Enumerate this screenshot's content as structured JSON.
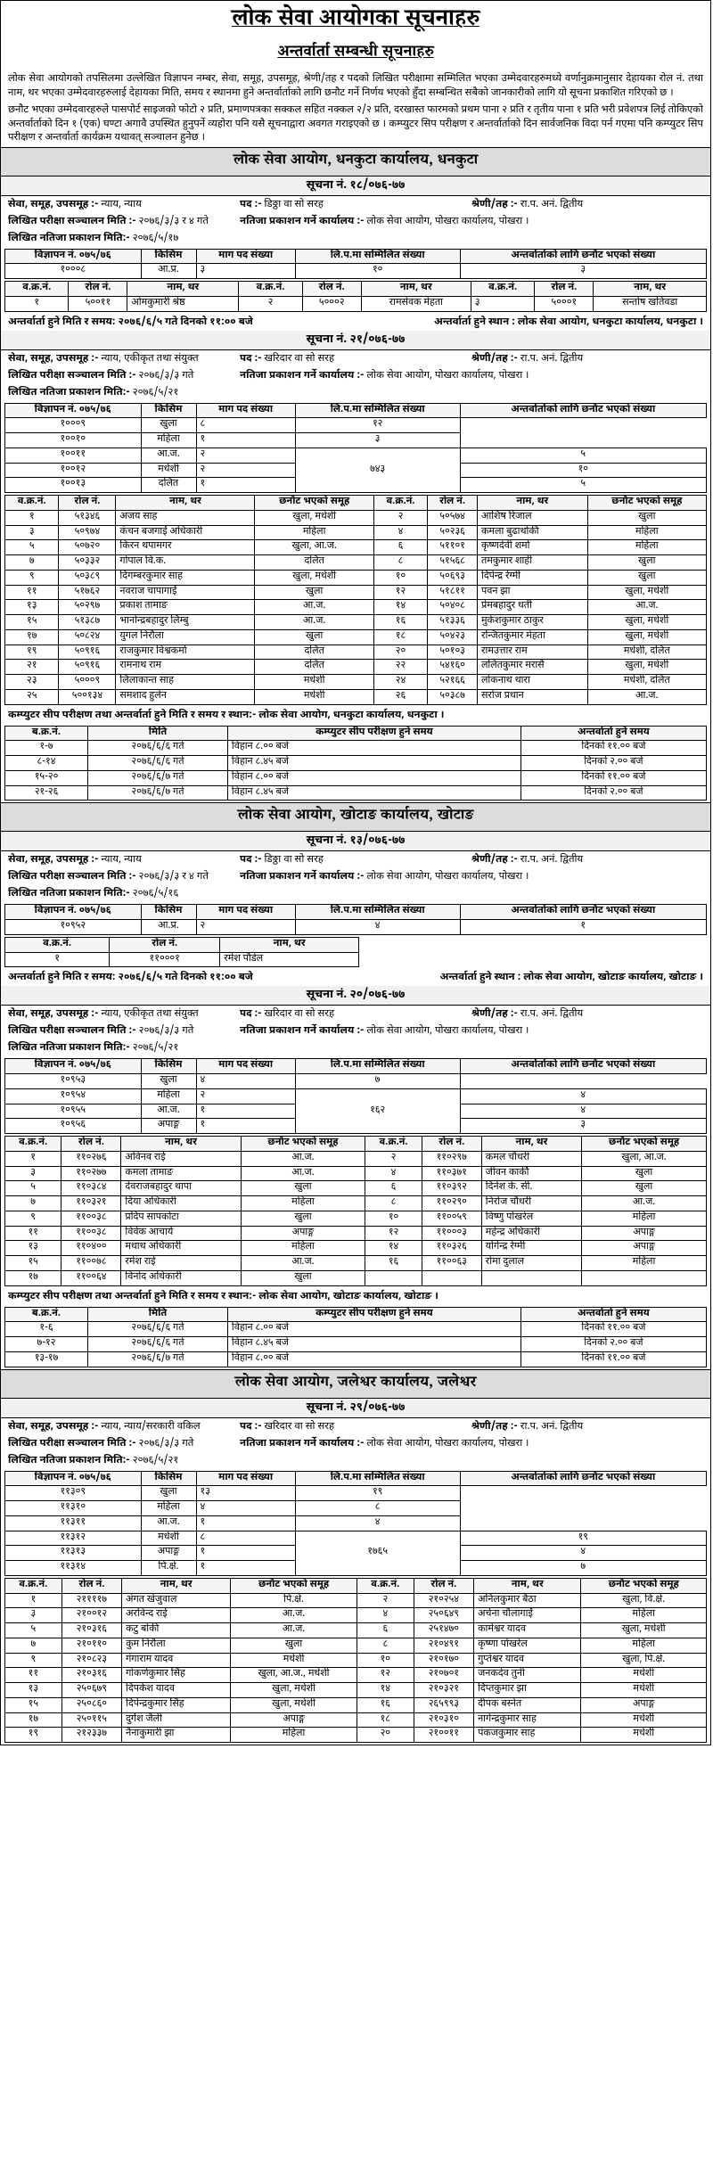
{
  "header": {
    "main": "लोक सेवा आयोगका सूचनाहरु",
    "sub": "अन्तर्वार्ता सम्बन्धी सूचनाहरु"
  },
  "intro": {
    "p1": "लोक सेवा आयोगको तपसिलमा उल्लेखित विज्ञापन नम्बर, सेवा, समूह, उपसमूह, श्रेणी/तह र पदको लिखित परीक्षामा सम्मिलित भएका उम्मेदवारहरुमध्ये वर्णानुक्रमानुसार देहायका रोल नं. तथा नाम, थर भएका उम्मेदवारहरुलाई देहायका मिति, समय र स्थानमा हुने अन्तर्वार्ताको लागि छनौट गर्ने निर्णय भएको हुँदा सम्बन्धित सबैको जानकारीको लागि यो सूचना प्रकाशित गरिएको छ ।",
    "p2": "छनौट भएका उम्मेदवारहरुले पासपोर्ट साइजको फोटो २ प्रति, प्रमाणपत्रका सक्कल सहित नक्कल २/२ प्रति, दरखास्त फारमको प्रथम पाना २ प्रति र तृतीय पाना १ प्रति भरी प्रवेशपत्र लिई तोकिएको अन्तर्वार्ताको दिन १ (एक) घण्टा अगावै उपस्थित हुनुपर्ने व्यहोरा पनि यसै सूचनाद्वारा अवगत गराइएको छ । कम्प्युटर सिप परीक्षण र अन्तर्वार्ताको दिन सार्वजनिक विदा पर्न गएमा पनि कम्प्युटर सिप परीक्षण र अन्तर्वार्ता कार्यक्रम यथावत् सञ्चालन हुनेछ ।"
  },
  "dhankuta": {
    "office": "लोक सेवा आयोग, धनकुटा कार्यालय, धनकुटा",
    "notice1": {
      "no": "सूचना नं. १८/०७६-७७",
      "meta": {
        "sewa_l": "सेवा, समूह, उपसमूह :-",
        "sewa_v": "न्याय, न्याय",
        "pad_l": "पद :- ",
        "pad_v": "डिठ्ठा वा सो सरह",
        "shreni_l": "श्रेणी/तह :- ",
        "shreni_v": "रा.प. अनं. द्वितीय",
        "likhit_l": "लिखित परीक्षा सञ्चालन मिति :- ",
        "likhit_v": "२०७६/३/३ र ४ गते",
        "natija_l": "नतिजा प्रकाशन गर्ने कार्यालय :- ",
        "natija_v": "लोक सेवा आयोग, पोखरा कार्यालय, पोखरा ।",
        "pub_l": "लिखित नतिजा प्रकाशन मिति:- ",
        "pub_v": "२०७६/५/१७"
      },
      "t1": {
        "h": [
          "विज्ञापन नं. ०७५/७६",
          "किसिम",
          "माग पद संख्या",
          "लि.प.मा सम्मिलित संख्या",
          "अन्तर्वार्ताको लागि छनौट भएको संख्या"
        ],
        "r": [
          [
            "१०००८",
            "आ.प्र.",
            "३",
            "१०",
            "३"
          ]
        ]
      },
      "t2": {
        "h": [
          "व.क्र.नं.",
          "रोल नं.",
          "नाम, थर",
          "व.क्र.नं.",
          "रोल नं.",
          "नाम, थर",
          "व.क्र.नं.",
          "रोल नं.",
          "नाम, थर"
        ],
        "r": [
          [
            "१",
            "५००११",
            "ओमकुमारी श्रेष्ठ",
            "२",
            "५०००२",
            "रामसेवक मेहता",
            "३",
            "५०००१",
            "सन्तोष खतिवडा"
          ]
        ]
      },
      "foot_l": "अन्तर्वार्ता हुने मिति र समय: २०७६/६/५ गते दिनको ११:०० बजे",
      "foot_r": "अन्तर्वार्ता हुने स्थान : लोक सेवा आयोग, धनकुटा कार्यालय, धनकुटा ।"
    },
    "notice2": {
      "no": "सूचना नं. २१/०७६-७७",
      "meta": {
        "sewa_v": "न्याय, एकीकृत तथा संयुक्त",
        "pad_v": "खरिदार वा सो सरह",
        "shreni_v": "रा.प. अनं. द्वितीय",
        "likhit_v": "२०७६/३/३ गते",
        "natija_v": "लोक सेवा आयोग, पोखरा कार्यालय, पोखरा ।",
        "pub_v": "२०७६/५/२१"
      },
      "t1": {
        "h": [
          "विज्ञापन नं. ०७५/७६",
          "किसिम",
          "माग पद संख्या",
          "लि.प.मा सम्मिलित संख्या",
          "अन्तर्वार्ताको लागि छनौट भएको संख्या"
        ],
        "r": [
          [
            "१०००९",
            "खुला",
            "८",
            "",
            "१२"
          ],
          [
            "१००१०",
            "महिला",
            "१",
            "",
            "३"
          ],
          [
            "१००११",
            "आ.ज.",
            "२",
            "७४३",
            "५"
          ],
          [
            "१००१२",
            "मधेशी",
            "२",
            "",
            "१०"
          ],
          [
            "१००१३",
            "दलित",
            "१",
            "",
            "५"
          ]
        ],
        "rowspan_col": 3
      },
      "t2": {
        "h": [
          "व.क्र.नं.",
          "रोल नं.",
          "नाम, थर",
          "छनौट भएको समूह",
          "व.क्र.नं.",
          "रोल नं.",
          "नाम, थर",
          "छनौट भएको समूह"
        ],
        "r": [
          [
            "१",
            "५१३४६",
            "अजय साह",
            "खुला, मधेशी",
            "२",
            "५०५७४",
            "आशिष रिजाल",
            "खुला"
          ],
          [
            "३",
            "५०९७४",
            "कंचन बजगाईं अधिकारी",
            "महिला",
            "४",
            "५०२३६",
            "कमला बुढाथोकी",
            "महिला"
          ],
          [
            "५",
            "५०७२०",
            "किरन थपामगर",
            "खुला, आ.ज.",
            "६",
            "५११०१",
            "कृष्णदेवी शर्मा",
            "महिला"
          ],
          [
            "७",
            "५०३३२",
            "गोपाल वि.क.",
            "दलित",
            "८",
            "५१५६८",
            "तमकुमार शाही",
            "खुला"
          ],
          [
            "९",
            "५०३८९",
            "दिगम्बरकुमार साह",
            "खुला, मधेशी",
            "१०",
            "५०६९३",
            "दिपेन्द्र रेग्मी",
            "खुला"
          ],
          [
            "११",
            "५१७६२",
            "नवराज चापागाईं",
            "खुला",
            "१२",
            "५१८११",
            "पवन झा",
            "खुला, मधेशी"
          ],
          [
            "१३",
            "५०२९७",
            "प्रकाश तामाङ",
            "आ.ज.",
            "१४",
            "५०४०८",
            "प्रेमबहादुर धर्ती",
            "आ.ज."
          ],
          [
            "१५",
            "५१३८७",
            "भानोन्द्रबहादुर लिम्बु",
            "आ.ज.",
            "१६",
            "५१३३६",
            "मुकेशकुमार ठाकुर",
            "खुला, मधेशी"
          ],
          [
            "१७",
            "५०८२४",
            "युगल निरौला",
            "खुला",
            "१८",
            "५०४२३",
            "रन्जितकुमार मेहता",
            "खुला, मधेशी"
          ],
          [
            "१९",
            "५०९१६",
            "राजकुमार विश्वकर्मा",
            "दलित",
            "२०",
            "५०१०३",
            "रामउत्तार राम",
            "मधेशी, दलित"
          ],
          [
            "२१",
            "५०९१६",
            "रामनाथ राम",
            "दलित",
            "२२",
            "५४१६०",
            "ललितकुमार मरासै",
            "खुला, मधेशी"
          ],
          [
            "२३",
            "५०००९",
            "लिलाकान्त साह",
            "मधेशी",
            "२४",
            "५२१६६",
            "लोकनाथ थारा",
            "मधेशी, दलित"
          ],
          [
            "२५",
            "५००१३४",
            "समशाद हुलेन",
            "मधेशी",
            "२६",
            "५०३८७",
            "सरोज प्रधान",
            "आ.ज."
          ]
        ]
      },
      "sched_title": "कम्प्युटर सीप परीक्षण तथा अन्तर्वार्ता हुने मिति र समय र स्थान:- लोक सेवा आयोग, धनकुटा कार्यालय, धनकुटा ।",
      "sched": {
        "h": [
          "ब.क्र.नं.",
          "मिति",
          "कम्प्युटर सीप परीक्षण हुने समय",
          "अन्तर्वार्ता हुने समय"
        ],
        "r": [
          [
            "१-७",
            "२०७६/६/६ गते",
            "विहान ८.०० बजे",
            "दिनको ११.०० बजे"
          ],
          [
            "८-१४",
            "२०७६/६/६ गते",
            "विहान ८.४५ बजे",
            "दिनको २.०० बजे"
          ],
          [
            "१५-२०",
            "२०७६/६/७ गते",
            "विहान ८.०० बजे",
            "दिनको ११.०० बजे"
          ],
          [
            "२१-२६",
            "२०७६/६/७ गते",
            "विहान ८.४५ बजे",
            "दिनको २.०० बजे"
          ]
        ]
      }
    }
  },
  "khotang": {
    "office": "लोक सेवा आयोग, खोटाङ कार्यालय, खोटाङ",
    "notice1": {
      "no": "सूचना नं. १३/०७६-७७",
      "meta": {
        "sewa_v": "न्याय, न्याय",
        "pad_v": "डिठ्ठा वा सो सरह",
        "shreni_v": "रा.प. अनं. द्वितीय",
        "likhit_v": "२०७६/३/३ र ४ गते",
        "natija_v": "लोक सेवा आयोग, पोखरा कार्यालय, पोखरा ।",
        "pub_v": "२०७६/५/१६"
      },
      "t1": {
        "h": [
          "विज्ञापन नं. ०७५/७६",
          "किसिम",
          "माग पद संख्या",
          "लि.प.मा सम्मिलित संख्या",
          "अन्तर्वार्ताको लागि छनौट भएको संख्या"
        ],
        "r": [
          [
            "१०९५२",
            "आ.प्र.",
            "२",
            "४",
            "१"
          ]
        ]
      },
      "t2": {
        "h": [
          "व.क्र.नं.",
          "रोल नं.",
          "नाम, थर"
        ],
        "r": [
          [
            "१",
            "११०००१",
            "रमेश पौडेल"
          ]
        ]
      },
      "foot_l": "अन्तर्वार्ता हुने मिति र समय: २०७६/६/५ गते दिनको ११:०० बजे",
      "foot_r": "अन्तर्वार्ता हुने स्थान : लोक सेवा आयोग, खोटाङ कार्यालय, खोटाङ ।"
    },
    "notice2": {
      "no": "सूचना नं. २०/०७६-७७",
      "meta": {
        "sewa_v": "न्याय, एकीकृत तथा संयुक्त",
        "pad_v": "खरिदार वा सो सरह",
        "shreni_v": "रा.प. अनं. द्वितीय",
        "likhit_v": "२०७६/३/३ गते",
        "natija_v": "लोक सेवा आयोग, पोखरा कार्यालय, पोखरा ।",
        "pub_v": "२०७६/५/२१"
      },
      "t1": {
        "h": [
          "विज्ञापन नं. ०७५/७६",
          "किसिम",
          "माग पद संख्या",
          "लि.प.मा सम्मिलित संख्या",
          "अन्तर्वार्ताको लागि छनौट भएको संख्या"
        ],
        "r": [
          [
            "१०९५३",
            "खुला",
            "४",
            "",
            "७"
          ],
          [
            "१०९५४",
            "महिला",
            "२",
            "१६२",
            "४"
          ],
          [
            "१०९५५",
            "आ.ज.",
            "१",
            "",
            "४"
          ],
          [
            "१०९५६",
            "अपाङ्ग",
            "१",
            "",
            "३"
          ]
        ],
        "rowspan_col": 3
      },
      "t2": {
        "h": [
          "व.क्र.नं.",
          "रोल नं.",
          "नाम, थर",
          "छनौट भएको समूह",
          "व.क्र.नं.",
          "रोल नं.",
          "नाम, थर",
          "छनौट भएको समूह"
        ],
        "r": [
          [
            "१",
            "११०२७६",
            "अविनव राई",
            "आ.ज.",
            "२",
            "११०२९७",
            "कमल चौधरी",
            "खुला, आ.ज."
          ],
          [
            "३",
            "११०२७७",
            "कमला तामाङ",
            "आ.ज.",
            "४",
            "११०३७१",
            "जीवन कार्की",
            "खुला"
          ],
          [
            "५",
            "११०३८४",
            "देवराजबहादुर थापा",
            "खुला",
            "६",
            "११०३९२",
            "दिनेश के. सी.",
            "खुला"
          ],
          [
            "७",
            "११०३२१",
            "दिया अधिकारी",
            "महिला",
            "८",
            "११०२९०",
            "निरोज चौधरी",
            "आ.ज."
          ],
          [
            "९",
            "११००३८",
            "प्रदिप सापकोटा",
            "खुला",
            "१०",
            "११००५९",
            "विष्णु पोखरेल",
            "महिला"
          ],
          [
            "११",
            "११००३८",
            "विवेक आचार्य",
            "अपाङ्ग",
            "१२",
            "११०००३",
            "महेन्द्र अधिकारी",
            "अपाङ्ग"
          ],
          [
            "१३",
            "११०४००",
            "मधाथ अधिकारी",
            "महिला",
            "१४",
            "११०३२६",
            "योगेन्द्र रेग्मी",
            "अपाङ्ग"
          ],
          [
            "१५",
            "११००७८",
            "रमेश राई",
            "आ.ज.",
            "१६",
            "११००६३",
            "रोमा दुलाल",
            "महिला"
          ],
          [
            "१७",
            "११००६४",
            "विनोद अधिकारी",
            "खुला",
            "",
            "",
            "",
            ""
          ]
        ]
      },
      "sched_title": "कम्प्युटर सीप परीक्षण तथा अन्तर्वार्ता हुने मिति र समय र स्थान:- लोक सेवा आयोग, खोटाङ कार्यालय, खोटाङ ।",
      "sched": {
        "h": [
          "ब.क्र.नं.",
          "मिति",
          "कम्प्युटर सीप परीक्षण हुने समय",
          "अन्तर्वार्ता हुने समय"
        ],
        "r": [
          [
            "१-६",
            "२०७६/६/६ गते",
            "विहान ८.०० बजे",
            "दिनको ११.०० बजे"
          ],
          [
            "७-१२",
            "२०७६/६/६ गते",
            "विहान ८.४५ बजे",
            "दिनको २.०० बजे"
          ],
          [
            "१३-१७",
            "२०७६/६/७ गते",
            "विहान ८.०० बजे",
            "दिनको ११.०० बजे"
          ]
        ]
      }
    }
  },
  "jaleshwor": {
    "office": "लोक सेवा आयोग, जलेश्वर कार्यालय, जलेश्वर",
    "notice": {
      "no": "सूचना नं. २९/०७६-७७",
      "meta": {
        "sewa_v": "न्याय, न्याय/सरकारी वकिल",
        "pad_v": "खरिदार वा सो सरह",
        "shreni_v": "रा.प. अनं. द्वितीय",
        "likhit_v": "२०७६/३/३ गते",
        "natija_v": "लोक सेवा आयोग, पोखरा कार्यालय, पोखरा ।",
        "pub_v": "२०७६/५/२१"
      },
      "t1": {
        "h": [
          "विज्ञापन नं. ०७५/७६",
          "किसिम",
          "माग पद संख्या",
          "लि.प.मा सम्मिलित संख्या",
          "अन्तर्वार्ताको लागि छनौट भएको संख्या"
        ],
        "r": [
          [
            "११३०९",
            "खुला",
            "१३",
            "",
            "१९"
          ],
          [
            "११३१०",
            "महिला",
            "४",
            "",
            "८"
          ],
          [
            "११३११",
            "आ.ज.",
            "१",
            "",
            "४"
          ],
          [
            "११३१२",
            "मधेशी",
            "८",
            "१७६५",
            "१९"
          ],
          [
            "११३१३",
            "अपाङ्ग",
            "१",
            "",
            "४"
          ],
          [
            "११३१४",
            "पि.क्षे.",
            "१",
            "",
            "७"
          ]
        ],
        "rowspan_col": 3
      },
      "t2": {
        "h": [
          "व.क्र.नं.",
          "रोल नं.",
          "नाम, थर",
          "छनौट भएको समूह",
          "व.क्र.नं.",
          "रोल नं.",
          "नाम, थर",
          "छनौट भएको समूह"
        ],
        "r": [
          [
            "१",
            "२११११७",
            "अंगत खेजुवाल",
            "पि.क्षे.",
            "२",
            "२१०२५४",
            "अनिलकुमार बैठा",
            "खुला, वि.क्षे."
          ],
          [
            "३",
            "२१००१२",
            "अरविन्द राई",
            "आ.ज.",
            "४",
            "२५०६४९",
            "अर्चना चौलागाईं",
            "महिला"
          ],
          [
            "५",
            "२१०३१६",
            "कटु बोकी",
            "आ.ज.",
            "६",
            "२५१४७०",
            "कामेश्वर यादव",
            "खुला, मधेशी"
          ],
          [
            "७",
            "२१०११०",
            "कुम निरौला",
            "खुला",
            "८",
            "२१०४९१",
            "कृष्णा पोखरेल",
            "महिला"
          ],
          [
            "९",
            "२१०८२३",
            "गंगाराम यादव",
            "मधेशी",
            "१०",
            "२१०१७०",
            "गुप्तेश्वर यादव",
            "खुला, पि.क्षे."
          ],
          [
            "११",
            "२१०३१६",
            "गोकर्णकुमार सिंह",
            "खुला, आ.ज., मधेशी",
            "१२",
            "२१०७०१",
            "जनकदेव तुनी",
            "मधेशी"
          ],
          [
            "१३",
            "२५०६७९",
            "दिपकेश यादव",
            "खुला, मधेशी",
            "१४",
            "२१०३२१",
            "दिप्तकुमार झा",
            "मधेशी"
          ],
          [
            "१५",
            "२५०८६०",
            "दिपेन्द्रकुमार सिंह",
            "खुला, मधेशी",
            "१६",
            "२६५९९३",
            "दीपक बस्नेत",
            "अपाङ्ग"
          ],
          [
            "१७",
            "२५०११५",
            "दुर्गेश जैली",
            "अपाङ्ग",
            "१८",
            "२१०३१०",
            "नागेन्द्रकुमार साह",
            "मधेशी"
          ],
          [
            "१९",
            "२१२३३७",
            "नैनाकुमारी झा",
            "महिला",
            "२०",
            "२१००११",
            "पंकजकुमार साह",
            "मधेशी"
          ]
        ]
      }
    }
  }
}
